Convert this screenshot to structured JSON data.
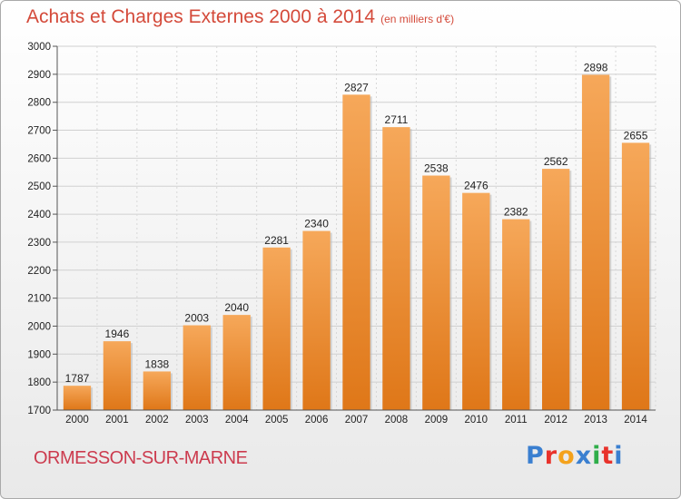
{
  "header": {
    "title": "Achats et Charges Externes 2000 à 2014",
    "unit": "(en milliers d'€)"
  },
  "footer": {
    "commune": "ORMESSON-SUR-MARNE",
    "logo_letters": [
      "P",
      "r",
      "o",
      "x",
      "i",
      "t",
      "i"
    ],
    "logo_colors": [
      "#3a7fd0",
      "#e8322b",
      "#f4a21c",
      "#3a7fd0",
      "#2fae4a",
      "#e8322b",
      "#3a7fd0"
    ]
  },
  "chart_data": {
    "type": "bar",
    "title": "Achats et Charges Externes 2000 à 2014",
    "subtitle": "(en milliers d'€)",
    "categories": [
      "2000",
      "2001",
      "2002",
      "2003",
      "2004",
      "2005",
      "2006",
      "2007",
      "2008",
      "2009",
      "2010",
      "2011",
      "2012",
      "2013",
      "2014"
    ],
    "values": [
      1787,
      1946,
      1838,
      2003,
      2040,
      2281,
      2340,
      2827,
      2711,
      2538,
      2476,
      2382,
      2562,
      2898,
      2655
    ],
    "ylim": [
      1700,
      3000
    ],
    "yticks": [
      1700,
      1800,
      1900,
      2000,
      2100,
      2200,
      2300,
      2400,
      2500,
      2600,
      2700,
      2800,
      2900,
      3000
    ],
    "grid": true,
    "bar_color": "#f09a3e"
  }
}
